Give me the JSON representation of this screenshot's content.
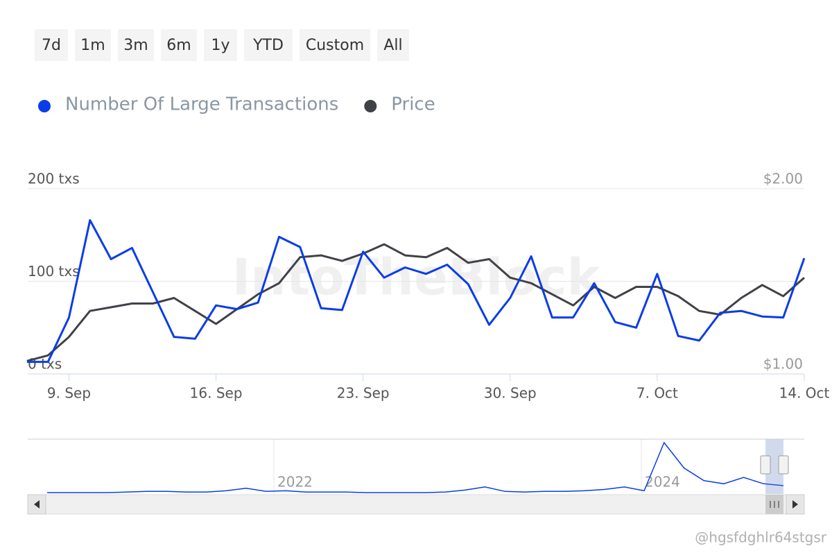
{
  "range_buttons": [
    "7d",
    "1m",
    "3m",
    "6m",
    "1y",
    "YTD",
    "Custom",
    "All"
  ],
  "watermark": "IntoTheBlock",
  "credit": "@hgsfdghlr64stgsr",
  "chart_data": {
    "type": "line",
    "categories": [
      null,
      null,
      "9. Sep",
      null,
      null,
      null,
      null,
      null,
      null,
      "16. Sep",
      null,
      null,
      null,
      null,
      null,
      null,
      "23. Sep",
      null,
      null,
      null,
      null,
      null,
      null,
      "30. Sep",
      null,
      null,
      null,
      null,
      null,
      null,
      "7. Oct",
      null,
      null,
      null,
      null,
      null,
      null,
      "14. Oct"
    ],
    "series": [
      {
        "name": "Number Of Large Transactions",
        "color": "#0a3de8",
        "values": [
          13,
          13,
          61,
          166,
          124,
          136,
          88,
          40,
          38,
          74,
          70,
          77,
          148,
          137,
          71,
          69,
          132,
          104,
          115,
          108,
          118,
          97,
          53,
          82,
          127,
          61,
          61,
          98,
          56,
          50,
          108,
          41,
          36,
          66,
          68,
          62,
          61,
          125
        ]
      },
      {
        "name": "Price",
        "color": "#3f4247",
        "axis": "y2",
        "values": [
          1.07,
          1.1,
          1.2,
          1.34,
          1.36,
          1.38,
          1.38,
          1.41,
          1.34,
          1.27,
          1.35,
          1.43,
          1.49,
          1.63,
          1.64,
          1.61,
          1.65,
          1.7,
          1.64,
          1.63,
          1.68,
          1.6,
          1.62,
          1.52,
          1.49,
          1.43,
          1.37,
          1.47,
          1.41,
          1.47,
          1.47,
          1.42,
          1.34,
          1.32,
          1.41,
          1.48,
          1.42,
          1.52
        ]
      }
    ],
    "ylim": [
      0,
      200
    ],
    "yticks": [
      {
        "value": 0,
        "label": "0 txs"
      },
      {
        "value": 100,
        "label": "100 txs"
      },
      {
        "value": 200,
        "label": "200 txs"
      }
    ],
    "y2lim": [
      1,
      2
    ],
    "y2ticks": [
      {
        "value": 1,
        "label": "$1.00"
      },
      {
        "value": 2,
        "label": "$2.00"
      }
    ],
    "grid": true,
    "legend": "top-left"
  },
  "navigator": {
    "labels": [
      "2022",
      "2024"
    ],
    "color": "#0a3de8",
    "values": [
      1,
      1,
      1,
      1,
      2,
      3,
      3,
      2,
      2,
      4,
      8,
      3,
      4,
      2,
      2,
      2,
      1,
      1,
      1,
      1,
      2,
      5,
      10,
      3,
      2,
      3,
      3,
      4,
      6,
      10,
      4,
      80,
      40,
      20,
      15,
      25,
      15,
      12
    ]
  }
}
